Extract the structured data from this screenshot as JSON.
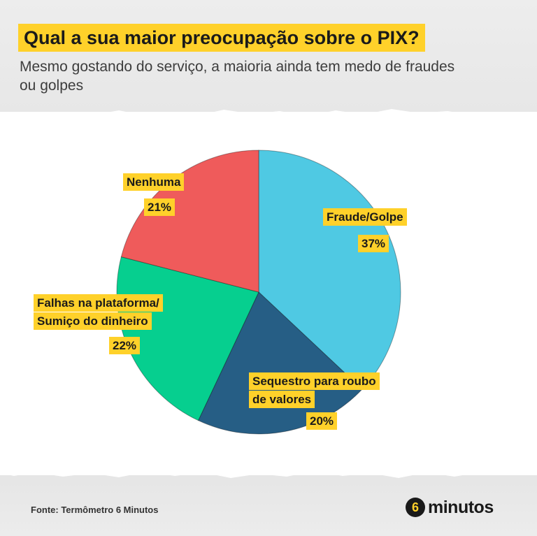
{
  "header": {
    "title": "Qual a sua maior preocupação sobre o PIX?",
    "subtitle": "Mesmo gostando do serviço, a maioria ainda tem medo de fraudes ou golpes"
  },
  "chart_data": {
    "type": "pie",
    "title": "Qual a sua maior preocupação sobre o PIX?",
    "slices": [
      {
        "label": "Fraude/Golpe",
        "value": 37,
        "display": "37%",
        "color": "#4fc9e3"
      },
      {
        "label": "Sequestro para roubo de valores",
        "value": 20,
        "display": "20%",
        "color": "#265e85"
      },
      {
        "label": "Falhas na plataforma/ Sumiço do dinheiro",
        "value": 22,
        "display": "22%",
        "color": "#06cf8f"
      },
      {
        "label": "Nenhuma",
        "value": 21,
        "display": "21%",
        "color": "#ef5b5b"
      }
    ],
    "start_angle_deg": 0,
    "direction": "clockwise"
  },
  "labels": {
    "fraude": {
      "line1": "Fraude/Golpe",
      "pct": "37%"
    },
    "sequestro": {
      "line1": "Sequestro para roubo",
      "line2": "de valores",
      "pct": "20%"
    },
    "falhas": {
      "line1": "Falhas na plataforma/",
      "line2": "Sumiço do dinheiro",
      "pct": "22%"
    },
    "nenhuma": {
      "line1": "Nenhuma",
      "pct": "21%"
    }
  },
  "footer": {
    "source": "Fonte: Termômetro 6 Minutos",
    "logo_number": "6",
    "logo_text": "minutos"
  },
  "colors": {
    "accent": "#ffd12a"
  }
}
